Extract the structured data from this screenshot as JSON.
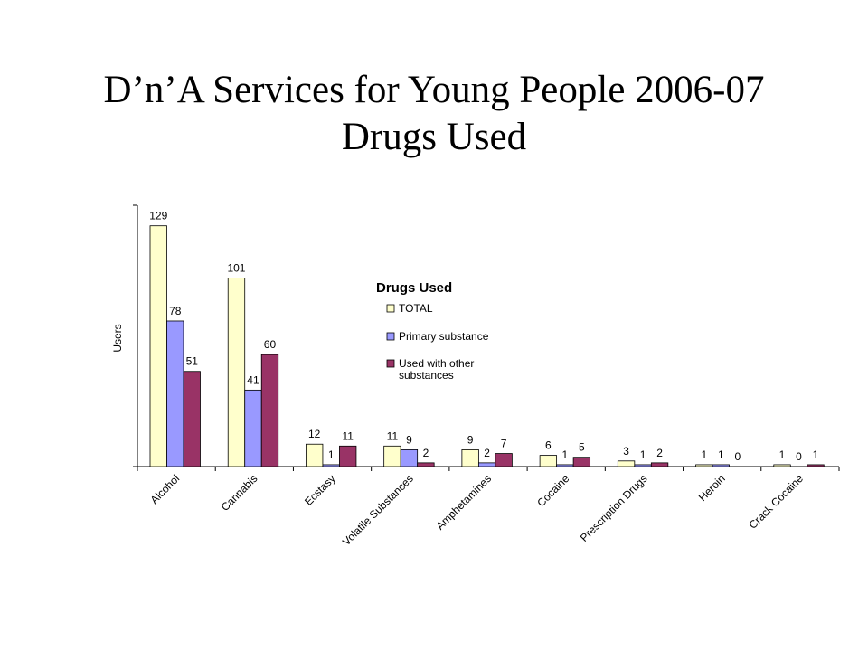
{
  "slide": {
    "title_line1": "D’n’A Services for Young People 2006-07",
    "title_line2": "Drugs Used"
  },
  "chart_data": {
    "type": "bar",
    "title": "",
    "xlabel": "",
    "ylabel": "Users",
    "legend_title": "Drugs Used",
    "legend_position": "top-center",
    "grid": false,
    "categories": [
      "Alcohol",
      "Cannabis",
      "Ecstasy",
      "Volatile Substances",
      "Amphetamines",
      "Cocaine",
      "Prescription Drugs",
      "Heroin",
      "Crack Cocaine"
    ],
    "series": [
      {
        "name": "TOTAL",
        "values": [
          129,
          101,
          12,
          11,
          9,
          6,
          3,
          1,
          1
        ],
        "color": "#FFFFCC"
      },
      {
        "name": "Primary substance",
        "values": [
          78,
          41,
          1,
          9,
          2,
          1,
          1,
          1,
          0
        ],
        "color": "#9999FF"
      },
      {
        "name": "Used with other substances",
        "values": [
          51,
          60,
          11,
          2,
          7,
          5,
          2,
          0,
          1
        ],
        "color": "#993366"
      }
    ],
    "ylim": [
      0,
      140
    ]
  }
}
